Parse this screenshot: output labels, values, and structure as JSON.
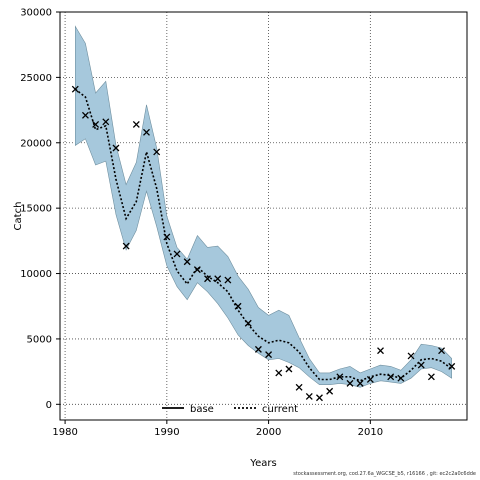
{
  "chart_data": {
    "type": "line",
    "xlabel": "Years",
    "ylabel": "Catch",
    "xlim": [
      1979.5,
      2019.5
    ],
    "ylim": [
      -1200,
      30000
    ],
    "xticks": [
      1980,
      1990,
      2000,
      2010
    ],
    "yticks": [
      0,
      5000,
      10000,
      15000,
      20000,
      25000,
      30000
    ],
    "grid": true,
    "legend_position": "bottom-center",
    "legend": [
      {
        "name": "base",
        "style": "solid",
        "color": "#000000"
      },
      {
        "name": "current",
        "style": "dotted",
        "color": "#000000"
      }
    ],
    "band_color": "#a6c8dc",
    "years": [
      1981,
      1982,
      1983,
      1984,
      1985,
      1986,
      1987,
      1988,
      1989,
      1990,
      1991,
      1992,
      1993,
      1994,
      1995,
      1996,
      1997,
      1998,
      1999,
      2000,
      2001,
      2002,
      2003,
      2004,
      2005,
      2006,
      2007,
      2008,
      2009,
      2010,
      2011,
      2012,
      2013,
      2014,
      2015,
      2016,
      2017,
      2018
    ],
    "current": [
      24100,
      23500,
      21000,
      21300,
      17200,
      14200,
      15500,
      19300,
      16500,
      12300,
      10200,
      9200,
      10500,
      9800,
      9300,
      8600,
      7200,
      6100,
      5200,
      4700,
      4900,
      4700,
      4000,
      2800,
      1900,
      1900,
      2100,
      2100,
      1800,
      2100,
      2300,
      2200,
      2000,
      2600,
      3400,
      3500,
      3300,
      2700
    ],
    "upper": [
      28900,
      27600,
      23800,
      24700,
      19800,
      16800,
      18500,
      22900,
      19600,
      14400,
      12000,
      11100,
      12900,
      12000,
      12100,
      11300,
      9800,
      8800,
      7400,
      6800,
      7200,
      6800,
      5100,
      3500,
      2400,
      2400,
      2700,
      2900,
      2400,
      2700,
      3000,
      2900,
      2600,
      3400,
      4600,
      4500,
      4300,
      3500
    ],
    "lower": [
      19800,
      20300,
      18300,
      18600,
      14500,
      11800,
      13300,
      16300,
      13600,
      10600,
      9000,
      8000,
      9300,
      8600,
      7700,
      6600,
      5300,
      4500,
      3900,
      3400,
      3500,
      3200,
      2800,
      2100,
      1500,
      1500,
      1600,
      1500,
      1300,
      1600,
      1800,
      1700,
      1600,
      2000,
      2700,
      2800,
      2500,
      2000
    ],
    "observed": [
      24100,
      22100,
      21400,
      21600,
      19600,
      12100,
      21400,
      20800,
      19300,
      12800,
      11500,
      10900,
      10300,
      9600,
      9600,
      9500,
      7500,
      6200,
      4200,
      3800,
      2400,
      2700,
      1300,
      600,
      500,
      1000,
      2100,
      1600,
      1600,
      1900,
      4100,
      2100,
      2000,
      3700,
      3000,
      2100,
      4100,
      2900
    ]
  },
  "footer_text": "stockassessment.org, cod.27.6a_WGCSE_b5, r16166 , git: ec2c2a0c6dde"
}
